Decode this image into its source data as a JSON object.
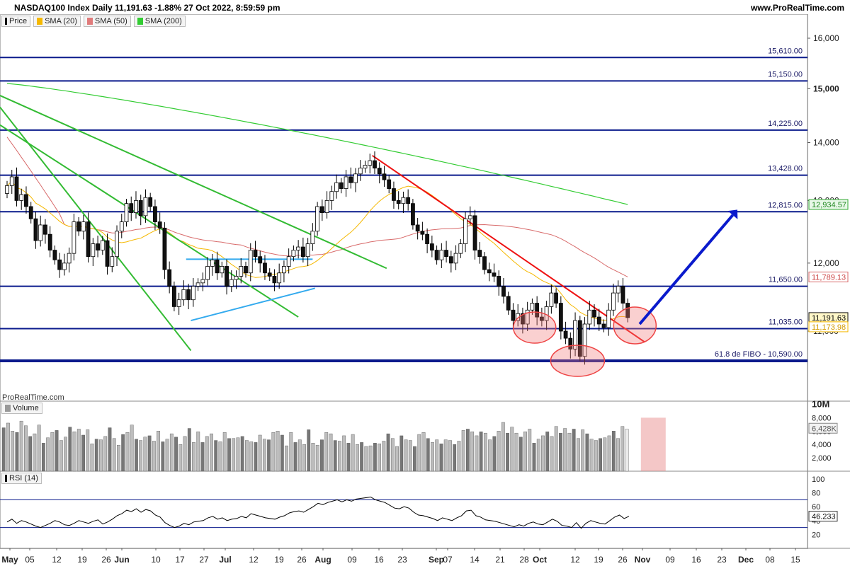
{
  "header": {
    "title": "NASDAQ100 Index Daily 11,191.63 -1.88% 27 Oct 2022, 8:59:59 pm",
    "site": "www.ProRealTime.com"
  },
  "legend": [
    {
      "label": "Price",
      "color": "#000000"
    },
    {
      "label": "SMA (20)",
      "color": "#f5b800"
    },
    {
      "label": "SMA (50)",
      "color": "#e07b7b"
    },
    {
      "label": "SMA (200)",
      "color": "#33cc33"
    }
  ],
  "watermark": "ProRealTime.com",
  "volume_label": "Volume",
  "rsi_label": "RSI (14)",
  "colors": {
    "level": "#0a1a8c",
    "sma20": "#f5b800",
    "sma50": "#d86a6a",
    "sma200": "#33cc33",
    "trend_green": "#33bb33",
    "channel": "#33aaee",
    "downtrend": "#ee1111",
    "arrow": "#0a1acc",
    "circle": "#ee4444"
  },
  "chart_data": [
    {
      "type": "candlestick",
      "title": "NASDAQ100 Index Daily",
      "y_scale": "log",
      "ylim": [
        10000,
        16600
      ],
      "y_ticks": [
        "11,000",
        "12,000",
        "13,000",
        "14,000",
        "15,000",
        "16,000"
      ],
      "x_ticks": [
        "May",
        "05",
        "12",
        "19",
        "26",
        "Jun",
        "10",
        "17",
        "27",
        "Jul",
        "12",
        "19",
        "26",
        "Aug",
        "09",
        "16",
        "23",
        "Sep",
        "07",
        "14",
        "21",
        "28",
        "Oct",
        "12",
        "19",
        "26",
        "Nov",
        "09",
        "16",
        "23",
        "Dec",
        "08",
        "15"
      ],
      "closes": [
        13250,
        13400,
        13000,
        13100,
        12900,
        12700,
        12350,
        12600,
        12450,
        12200,
        12050,
        11900,
        12000,
        12150,
        12650,
        12500,
        12650,
        12100,
        12300,
        12200,
        12350,
        11950,
        12100,
        12500,
        12650,
        12950,
        12800,
        13000,
        12750,
        13050,
        12900,
        12650,
        12550,
        11900,
        11650,
        11350,
        11450,
        11600,
        11450,
        11650,
        11700,
        11750,
        11950,
        12050,
        11850,
        11950,
        11650,
        11750,
        11800,
        11950,
        11850,
        12200,
        12100,
        12000,
        11850,
        11800,
        11700,
        11850,
        11950,
        12100,
        12200,
        12250,
        12100,
        12300,
        12500,
        12900,
        12800,
        13000,
        13150,
        13300,
        13200,
        13400,
        13300,
        13450,
        13550,
        13600,
        13680,
        13550,
        13450,
        13350,
        13200,
        13000,
        12950,
        13050,
        12950,
        12600,
        12500,
        12450,
        12300,
        12200,
        12050,
        12200,
        12100,
        12000,
        12150,
        12300,
        12700,
        12750,
        12200,
        12100,
        11900,
        11850,
        11800,
        11650,
        11500,
        11300,
        11150,
        11250,
        11100,
        11300,
        11400,
        11200,
        11150,
        11350,
        11550,
        11400,
        11000,
        10900,
        10750,
        11150,
        10650,
        11100,
        11300,
        11200,
        11100,
        11050,
        11300,
        11550,
        11650,
        11400,
        11191.63
      ],
      "levels": [
        {
          "label": "15,610.00",
          "value": 15610
        },
        {
          "label": "15,150.00",
          "value": 15150
        },
        {
          "label": "14,225.00",
          "value": 14225
        },
        {
          "label": "13,428.00",
          "value": 13428
        },
        {
          "label": "12,815.00",
          "value": 12815
        },
        {
          "label": "11,650.00",
          "value": 11650
        },
        {
          "label": "11,035.00",
          "value": 11035
        },
        {
          "label": "61.8 de FIBO -  10,590.00",
          "value": 10590
        }
      ],
      "value_tags": [
        {
          "label": "12,934.57",
          "value": 12934.57,
          "series": "SMA (200)"
        },
        {
          "label": "11,789.13",
          "value": 11789.13,
          "series": "SMA (50)"
        },
        {
          "label": "11,191.63",
          "value": 11191.63,
          "series": "Price"
        },
        {
          "label": "11,173.98",
          "value": 11173.98,
          "series": "SMA (20)"
        }
      ]
    },
    {
      "type": "bar",
      "title": "Volume",
      "y_ticks": [
        "10M",
        "8,000",
        "6,000",
        "4,000",
        "2,000"
      ],
      "ylim": [
        0,
        10000
      ],
      "last_value": "6,428K",
      "values": [
        6500,
        7200,
        6000,
        5800,
        7500,
        6800,
        5200,
        5600,
        6900,
        4200,
        5000,
        5800,
        6100,
        4600,
        5100,
        6600,
        5900,
        6300,
        5400,
        6200,
        4100,
        4800,
        4700,
        5200,
        6500,
        4900,
        3900,
        5500,
        5800,
        6900,
        4800,
        4600,
        5100,
        5300,
        4500,
        6000,
        4400,
        4800,
        5600,
        5100,
        4000,
        5200,
        6400,
        4300,
        5900,
        4300,
        5200,
        5600,
        4600,
        4400,
        5800,
        4900,
        4900,
        5000,
        5200,
        4600,
        4400,
        4300,
        5400,
        4800,
        4700,
        5800,
        6000,
        5400,
        3800,
        5800,
        4300,
        4700,
        4000,
        6200,
        4200,
        3900,
        4700,
        5800,
        5600,
        4600,
        4500,
        5300,
        4200,
        5500,
        4000,
        4300,
        3700,
        3800,
        4200,
        4100,
        4500,
        5600,
        4900,
        3700,
        5300,
        4700,
        4600,
        3700,
        5500,
        5800,
        4900,
        4300,
        4700,
        4100,
        4700,
        4600,
        4000,
        4500,
        6100,
        6300,
        5900,
        5300,
        5900,
        5700,
        4700,
        5200,
        6000,
        7300,
        5700,
        6600,
        5700,
        5100,
        5900,
        6300,
        4200,
        4800,
        5300,
        5900,
        5200,
        6700,
        5700,
        6400,
        5700,
        6300,
        4900,
        6200,
        5600,
        4800,
        4600,
        4900,
        5000,
        5300,
        6000,
        4900,
        6700,
        6300
      ]
    },
    {
      "type": "line",
      "title": "RSI (14)",
      "y_ticks": [
        "100",
        "80",
        "60",
        "40",
        "20"
      ],
      "ylim": [
        0,
        100
      ],
      "bands": [
        70,
        30
      ],
      "last_value": "46.233",
      "values": [
        38,
        42,
        36,
        40,
        38,
        35,
        32,
        30,
        33,
        36,
        40,
        38,
        34,
        33,
        36,
        40,
        38,
        36,
        39,
        41,
        35,
        38,
        42,
        47,
        50,
        55,
        53,
        57,
        52,
        56,
        54,
        48,
        45,
        37,
        33,
        30,
        32,
        36,
        34,
        38,
        39,
        40,
        44,
        46,
        42,
        44,
        40,
        42,
        43,
        46,
        44,
        50,
        48,
        46,
        44,
        43,
        42,
        45,
        47,
        51,
        53,
        54,
        52,
        56,
        60,
        65,
        63,
        66,
        68,
        70,
        67,
        70,
        68,
        71,
        72,
        73,
        74,
        70,
        68,
        66,
        62,
        58,
        57,
        60,
        58,
        52,
        48,
        47,
        45,
        43,
        40,
        44,
        42,
        40,
        44,
        47,
        54,
        55,
        47,
        45,
        41,
        40,
        39,
        37,
        35,
        33,
        31,
        34,
        32,
        36,
        38,
        35,
        34,
        38,
        42,
        39,
        33,
        32,
        30,
        37,
        29,
        36,
        40,
        38,
        36,
        35,
        40,
        45,
        48,
        43,
        46.233
      ]
    }
  ]
}
